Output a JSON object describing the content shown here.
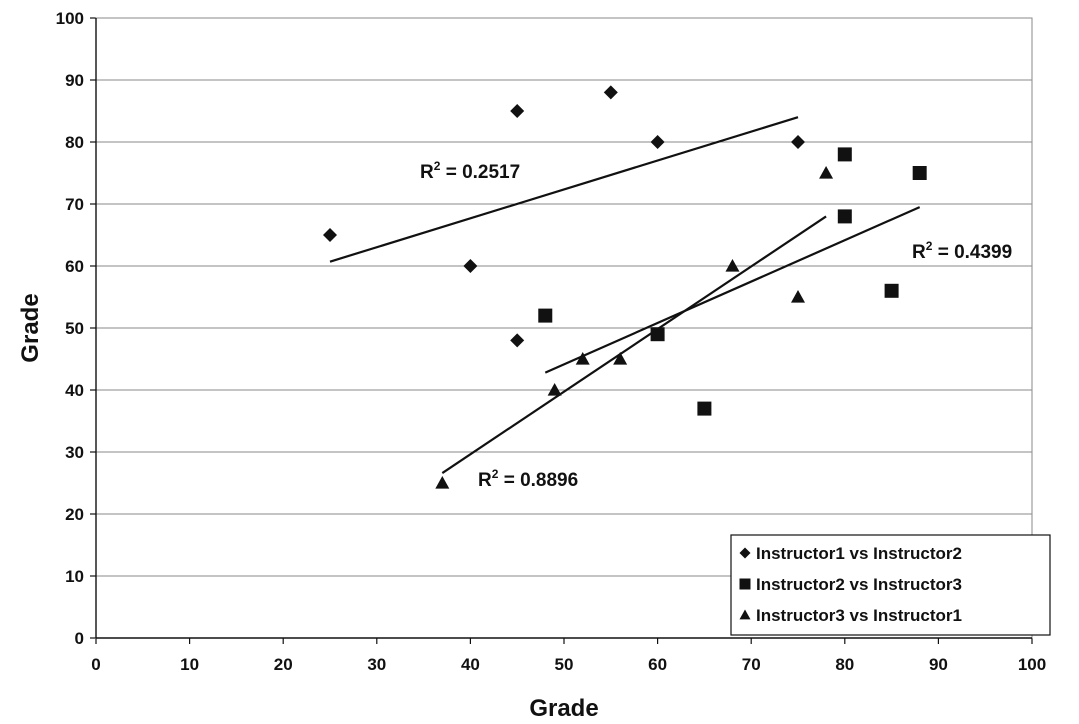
{
  "chart_data": {
    "type": "scatter",
    "title": "",
    "xlabel": "Grade",
    "ylabel": "Grade",
    "xlim": [
      0,
      100
    ],
    "ylim": [
      0,
      100
    ],
    "x_ticks": [
      "0",
      "10",
      "20",
      "30",
      "40",
      "50",
      "60",
      "70",
      "80",
      "90",
      "100"
    ],
    "y_ticks": [
      "0",
      "10",
      "20",
      "30",
      "40",
      "50",
      "60",
      "70",
      "80",
      "90",
      "100"
    ],
    "grid": "horizontal",
    "legend_position": "bottom-right",
    "series": [
      {
        "name": "Instructor1 vs Instructor2",
        "marker": "diamond",
        "color": "#111111",
        "points": [
          [
            25,
            65
          ],
          [
            40,
            60
          ],
          [
            45,
            85
          ],
          [
            45,
            48
          ],
          [
            55,
            88
          ],
          [
            60,
            80
          ],
          [
            75,
            80
          ]
        ],
        "trendline": {
          "x": [
            25,
            75
          ],
          "y": [
            60.7,
            84
          ]
        },
        "r2_label": "R",
        "r2_sup": "2",
        "r2_value": " = 0.2517"
      },
      {
        "name": "Instructor2 vs Instructor3",
        "marker": "square",
        "color": "#111111",
        "points": [
          [
            48,
            52
          ],
          [
            60,
            49
          ],
          [
            65,
            37
          ],
          [
            80,
            78
          ],
          [
            80,
            68
          ],
          [
            85,
            56
          ],
          [
            88,
            75
          ]
        ],
        "trendline": {
          "x": [
            48,
            88
          ],
          "y": [
            42.8,
            69.5
          ]
        },
        "r2_label": "R",
        "r2_sup": "2",
        "r2_value": " = 0.4399"
      },
      {
        "name": "Instructor3 vs Instructor1",
        "marker": "triangle",
        "color": "#111111",
        "points": [
          [
            37,
            25
          ],
          [
            49,
            40
          ],
          [
            52,
            45
          ],
          [
            56,
            45
          ],
          [
            68,
            60
          ],
          [
            75,
            55
          ],
          [
            78,
            75
          ]
        ],
        "trendline": {
          "x": [
            37,
            78
          ],
          "y": [
            26.6,
            68
          ]
        },
        "r2_label": "R",
        "r2_sup": "2",
        "r2_value": " = 0.8896"
      }
    ]
  }
}
